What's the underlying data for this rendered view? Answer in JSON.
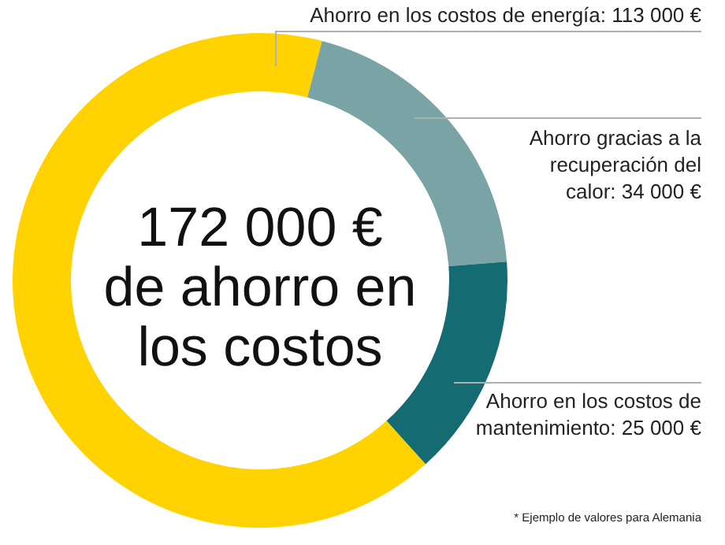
{
  "chart_data": {
    "type": "donut",
    "title": "172 000 € de ahorro en los costos",
    "categories": [
      "Ahorro en los costos de energía",
      "Ahorro gracias a la recuperación del calor",
      "Ahorro en los costos de mantenimiento"
    ],
    "values": [
      113000,
      34000,
      25000
    ],
    "value_labels": [
      "113 000 €",
      "34 000 €",
      "25 000 €"
    ],
    "colors": [
      "#ffd200",
      "#7aa3a6",
      "#146b72"
    ],
    "annotations": [
      "* Ejemplo de valores para Alemania"
    ]
  }
}
